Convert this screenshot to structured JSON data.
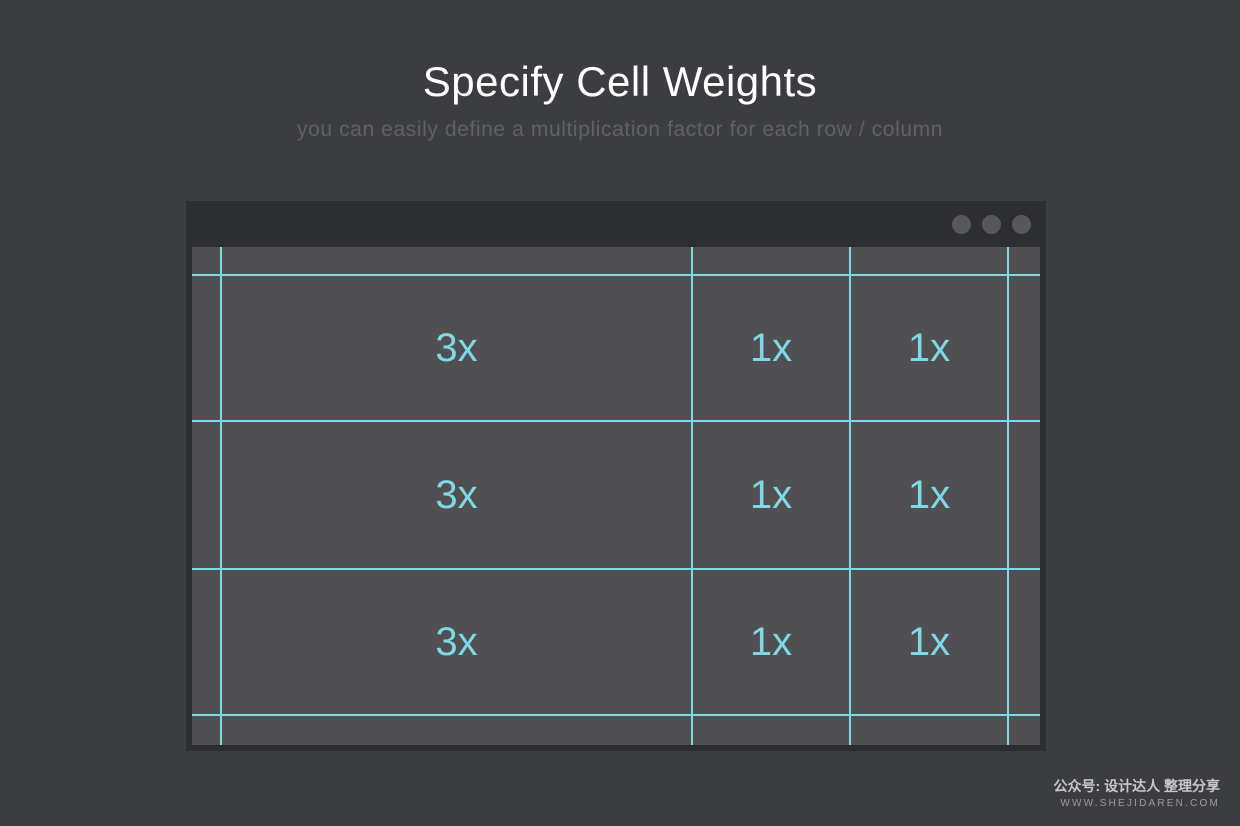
{
  "header": {
    "title": "Specify Cell Weights",
    "subtitle": "you can easily define a multiplication factor for each row / column"
  },
  "window": {
    "controls": [
      "window-dot",
      "window-dot",
      "window-dot"
    ]
  },
  "grid": {
    "rows": [
      [
        "3x",
        "1x",
        "1x"
      ],
      [
        "3x",
        "1x",
        "1x"
      ],
      [
        "3x",
        "1x",
        "1x"
      ]
    ],
    "column_weights": [
      3,
      1,
      1
    ]
  },
  "colors": {
    "background": "#3c3d41",
    "window": "#2d2e31",
    "content": "#505053",
    "gridline": "#7fd8e6",
    "title": "#ffffff",
    "subtitle": "#5f6166"
  },
  "watermark": {
    "line1": "公众号: 设计达人 整理分享",
    "line2": "WWW.SHEJIDAREN.COM"
  }
}
